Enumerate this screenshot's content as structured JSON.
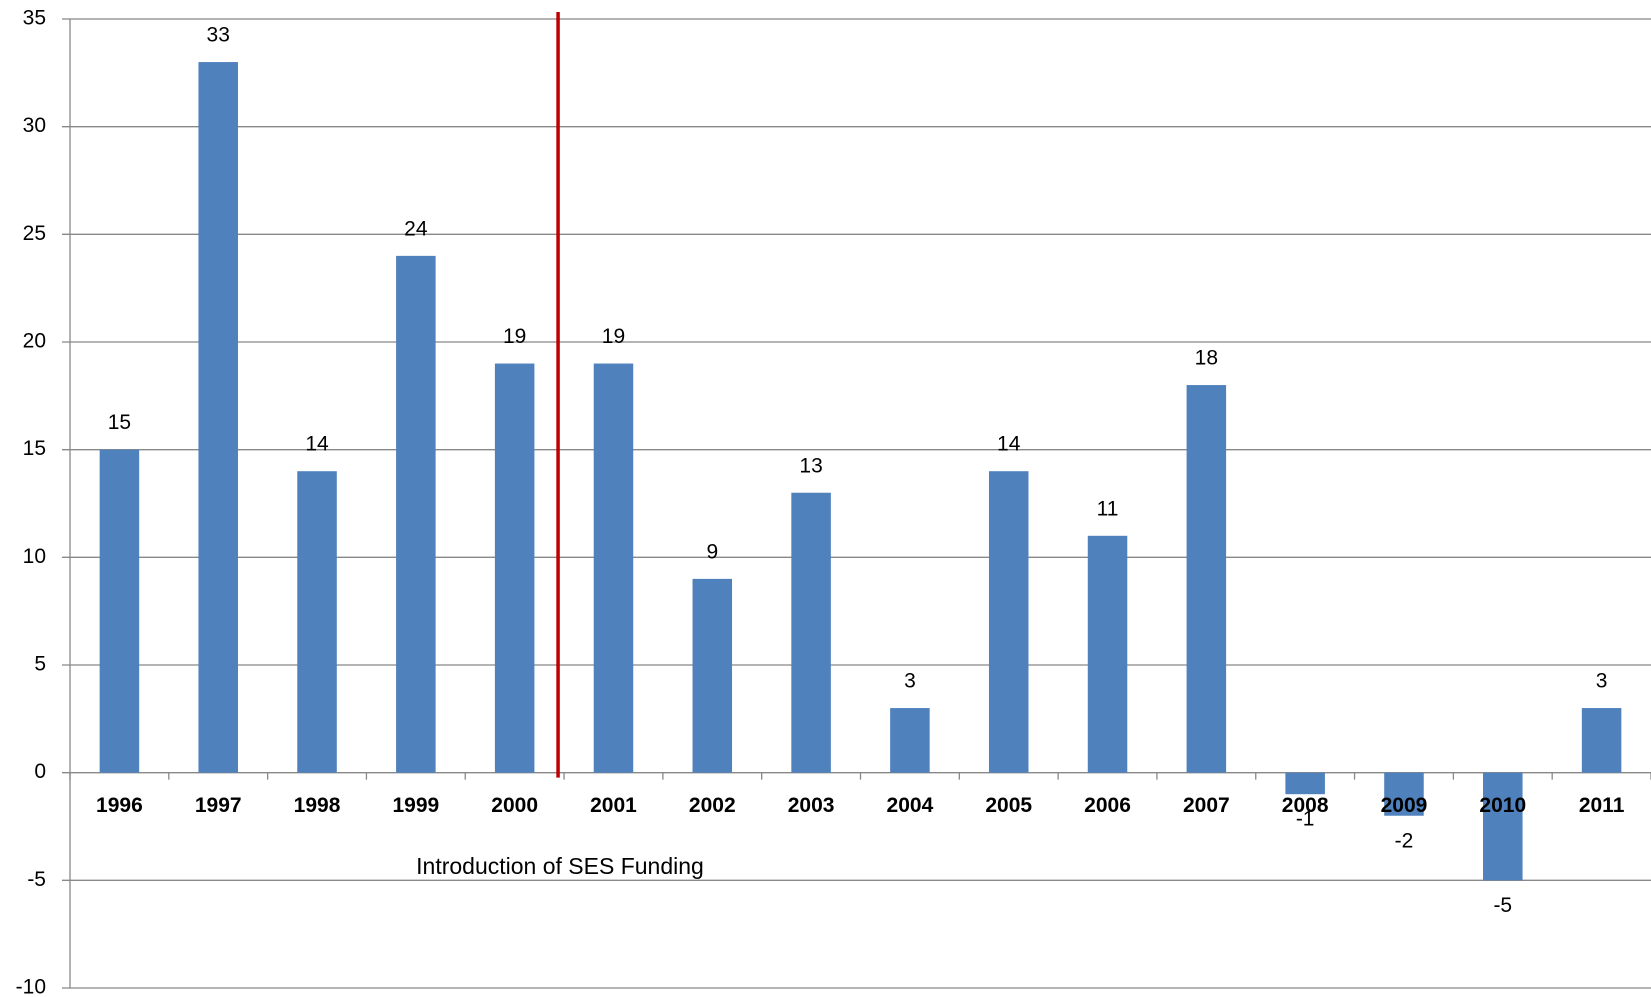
{
  "chart_data": {
    "type": "bar",
    "categories": [
      "1996",
      "1997",
      "1998",
      "1999",
      "2000",
      "2001",
      "2002",
      "2003",
      "2004",
      "2005",
      "2006",
      "2007",
      "2008",
      "2009",
      "2010",
      "2011"
    ],
    "values": [
      15,
      33,
      14,
      24,
      19,
      19,
      9,
      13,
      3,
      14,
      11,
      18,
      -1,
      -2,
      -5,
      3
    ],
    "color": "#4f81bd",
    "ylim": [
      -10,
      35
    ],
    "yticks": [
      -10,
      -5,
      0,
      5,
      10,
      15,
      20,
      25,
      30,
      35
    ],
    "grid": true,
    "annotation": {
      "text": "Introduction of SES Funding",
      "color": "#c00000"
    }
  }
}
